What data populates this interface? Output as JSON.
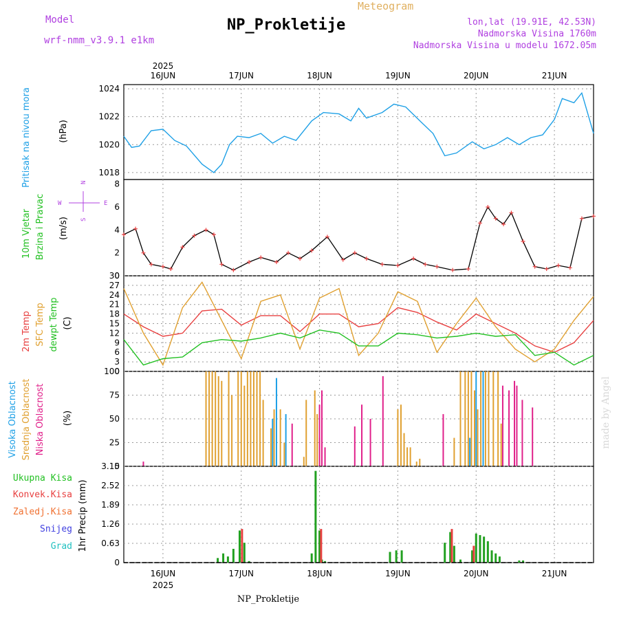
{
  "header": {
    "model_label": "Model",
    "model_name": "wrf-nmm_v3.9.1 e1km",
    "title": "NP_Prokletije",
    "subtitle": "Meteogram",
    "lonlat": "lon,lat (19.91E, 42.53N)",
    "altitude": "Nadmorska Visina 1760m",
    "model_altitude": "Nadmorska Visina u modelu 1672.05m",
    "bottom_label": "NP_Prokletije",
    "watermark": "made by Angel"
  },
  "colors": {
    "pressure": "#1ea0e6",
    "wind_label": "#22c022",
    "wind_dir": "#b040e0",
    "t2m": "#e84040",
    "sfc": "#e0a030",
    "dewpt": "#22c022",
    "cloud_high": "#1ea0e6",
    "cloud_mid": "#e0a030",
    "cloud_low": "#e0208a",
    "precip_total": "#22a020",
    "precip_conv": "#e84040",
    "precip_grid": "#f07030",
    "snow": "#4040e0",
    "hail": "#20c0c0",
    "title": "#000000",
    "model": "#b040e0",
    "meteogram": "#e0b060"
  },
  "time_axis": {
    "year": "2025",
    "days": [
      "16JUN",
      "17JUN",
      "18JUN",
      "19JUN",
      "20JUN",
      "21JUN"
    ],
    "day_positions": [
      0.5,
      1.5,
      2.5,
      3.5,
      4.5,
      5.5
    ],
    "range": [
      0,
      6
    ]
  },
  "chart_data": [
    {
      "type": "line",
      "panel": "pressure",
      "ylabel": "(hPa)",
      "side_label": "Pritisak na nivou mora",
      "ylim": [
        1017.5,
        1024.3
      ],
      "yticks": [
        "1024",
        "1022",
        "1020",
        "1018"
      ],
      "ytick_values": [
        1024,
        1022,
        1020,
        1018
      ],
      "series": [
        {
          "x": [
            0,
            0.1,
            0.2,
            0.35,
            0.5,
            0.65,
            0.8,
            1.0,
            1.15,
            1.25,
            1.35,
            1.45,
            1.6,
            1.75,
            1.9,
            2.05,
            2.2,
            2.4,
            2.55,
            2.75,
            2.9,
            3.0,
            3.1,
            3.3,
            3.45,
            3.6,
            3.8,
            3.95,
            4.1,
            4.25,
            4.45,
            4.6,
            4.75,
            4.9,
            5.05,
            5.2,
            5.35,
            5.5,
            5.6,
            5.75,
            5.85,
            6.0
          ],
          "values": [
            1020.6,
            1019.8,
            1019.9,
            1021.0,
            1021.1,
            1020.3,
            1019.9,
            1018.6,
            1018.0,
            1018.6,
            1020.0,
            1020.6,
            1020.5,
            1020.8,
            1020.1,
            1020.6,
            1020.3,
            1021.7,
            1022.3,
            1022.2,
            1021.7,
            1022.6,
            1021.9,
            1022.3,
            1022.9,
            1022.7,
            1021.6,
            1020.8,
            1019.2,
            1019.4,
            1020.2,
            1019.7,
            1020.0,
            1020.5,
            1020.0,
            1020.5,
            1020.7,
            1021.8,
            1023.3,
            1023.0,
            1023.7,
            1020.8
          ]
        }
      ]
    },
    {
      "type": "line",
      "panel": "wind",
      "ylabel": "(m/s)",
      "side_label_1": "10m Vjetar",
      "side_label_2": "Brzina i Pravac",
      "compass": [
        "N",
        "W",
        "E",
        "S"
      ],
      "ylim": [
        0,
        8.4
      ],
      "yticks": [
        "8",
        "6",
        "4",
        "2",
        "0"
      ],
      "ytick_values": [
        8,
        6,
        4,
        2,
        0
      ],
      "series": [
        {
          "name": "speed",
          "x": [
            0,
            0.15,
            0.25,
            0.35,
            0.5,
            0.6,
            0.75,
            0.9,
            1.05,
            1.15,
            1.25,
            1.4,
            1.6,
            1.75,
            1.95,
            2.1,
            2.25,
            2.4,
            2.6,
            2.8,
            2.95,
            3.1,
            3.3,
            3.5,
            3.7,
            3.85,
            4.0,
            4.2,
            4.4,
            4.55,
            4.65,
            4.75,
            4.85,
            4.95,
            5.1,
            5.25,
            5.4,
            5.55,
            5.7,
            5.85,
            6.0
          ],
          "values": [
            3.6,
            4.1,
            2.0,
            1.0,
            0.8,
            0.6,
            2.5,
            3.5,
            4.0,
            3.6,
            1.0,
            0.5,
            1.2,
            1.6,
            1.2,
            2.0,
            1.5,
            2.2,
            3.4,
            1.4,
            2.0,
            1.5,
            1.0,
            0.9,
            1.5,
            1.0,
            0.8,
            0.5,
            0.6,
            4.6,
            6.0,
            5.0,
            4.5,
            5.5,
            3.0,
            0.8,
            0.6,
            0.9,
            0.7,
            5.0,
            5.2
          ]
        }
      ]
    },
    {
      "type": "line",
      "panel": "temperature",
      "ylabel": "(C)",
      "side_labels": [
        "2m Temp",
        "SFC Temp",
        "dewpt Temp"
      ],
      "ylim": [
        0,
        30
      ],
      "yticks": [
        "30",
        "27",
        "24",
        "21",
        "18",
        "15",
        "12",
        "9",
        "6",
        "3",
        "0"
      ],
      "ytick_values": [
        30,
        27,
        24,
        21,
        18,
        15,
        12,
        9,
        6,
        3,
        0
      ],
      "x": [
        0,
        0.25,
        0.5,
        0.75,
        1.0,
        1.25,
        1.5,
        1.75,
        2.0,
        2.25,
        2.5,
        2.75,
        3.0,
        3.25,
        3.5,
        3.75,
        4.0,
        4.25,
        4.5,
        4.75,
        5.0,
        5.25,
        5.5,
        5.75,
        6.0
      ],
      "series": [
        {
          "name": "2m Temp",
          "values": [
            18.0,
            14.0,
            11.0,
            12.0,
            19.0,
            19.5,
            14.5,
            17.5,
            17.5,
            12.5,
            18.0,
            18.0,
            14.0,
            15.0,
            20.0,
            18.5,
            15.5,
            13.0,
            18.0,
            15.0,
            12.0,
            8.0,
            6.0,
            9.0,
            16.0
          ]
        },
        {
          "name": "SFC Temp",
          "values": [
            26.0,
            12.0,
            2.0,
            20.0,
            28.0,
            16.0,
            4.0,
            22.0,
            24.0,
            7.0,
            23.0,
            26.0,
            5.0,
            12.0,
            25.0,
            22.0,
            6.0,
            15.0,
            23.0,
            14.0,
            7.0,
            3.0,
            7.0,
            16.0,
            23.5
          ]
        },
        {
          "name": "dewpt Temp",
          "values": [
            10.0,
            2.0,
            4.0,
            4.5,
            9.0,
            10.0,
            9.5,
            10.5,
            12.0,
            10.5,
            13.0,
            12.0,
            8.0,
            8.0,
            12.0,
            11.5,
            10.5,
            11.0,
            12.0,
            11.0,
            11.5,
            5.0,
            6.0,
            2.0,
            5.0
          ]
        }
      ]
    },
    {
      "type": "bar",
      "panel": "clouds",
      "ylabel": "(%)",
      "side_labels": [
        "Visoka Oblacnost",
        "Srednja Oblacnost",
        "Niska Oblacnost"
      ],
      "ylim": [
        0,
        100
      ],
      "yticks": [
        "100",
        "75",
        "50",
        "25",
        "0"
      ],
      "ytick_values": [
        100,
        75,
        50,
        25,
        0
      ],
      "series": [
        {
          "name": "Srednja Oblacnost",
          "x": [
            1.05,
            1.09,
            1.13,
            1.17,
            1.21,
            1.25,
            1.34,
            1.38,
            1.46,
            1.5,
            1.54,
            1.58,
            1.62,
            1.66,
            1.7,
            1.74,
            1.78,
            1.88,
            1.92,
            2.0,
            2.05,
            2.3,
            2.33,
            2.44,
            2.47,
            2.5,
            3.5,
            3.54,
            3.58,
            3.62,
            3.66,
            3.74,
            3.78,
            4.22,
            4.3,
            4.36,
            4.4,
            4.44,
            4.48,
            4.52,
            4.56,
            4.62,
            4.66,
            4.72,
            4.78,
            4.82
          ],
          "values": [
            100,
            100,
            100,
            100,
            95,
            90,
            100,
            75,
            100,
            100,
            85,
            100,
            100,
            100,
            100,
            100,
            70,
            40,
            60,
            60,
            25,
            10,
            70,
            80,
            55,
            30,
            60,
            65,
            35,
            20,
            20,
            5,
            8,
            30,
            100,
            100,
            100,
            100,
            80,
            60,
            100,
            100,
            100,
            100,
            100,
            45
          ]
        },
        {
          "name": "Visoka Oblacnost",
          "x": [
            1.9,
            1.95,
            2.07,
            4.42,
            4.5,
            4.59
          ],
          "values": [
            50,
            93,
            55,
            30,
            100,
            100
          ]
        },
        {
          "name": "Niska Oblacnost",
          "x": [
            0.25,
            2.15,
            2.5,
            2.53,
            2.57,
            2.95,
            3.04,
            3.15,
            3.31,
            4.08,
            4.84,
            4.92,
            4.99,
            5.02,
            5.09,
            5.22
          ],
          "values": [
            5,
            45,
            65,
            80,
            20,
            42,
            65,
            50,
            95,
            55,
            85,
            80,
            90,
            85,
            70,
            62
          ]
        }
      ]
    },
    {
      "type": "bar",
      "panel": "precip",
      "ylabel": "1hr Precip (mm)",
      "side_labels": [
        "Ukupna Kisa",
        "Konvek.Kisa",
        "Zaledj.Kisa",
        "Snijeg",
        "Grad"
      ],
      "ylim": [
        0,
        3.15
      ],
      "yticks": [
        "3.15",
        "2.52",
        "1.89",
        "1.26",
        "0.63",
        "0"
      ],
      "ytick_values": [
        3.15,
        2.52,
        1.89,
        1.26,
        0.63,
        0
      ],
      "series": [
        {
          "name": "Ukupna Kisa",
          "x": [
            1.2,
            1.27,
            1.33,
            1.4,
            1.48,
            1.54,
            1.6,
            2.4,
            2.45,
            2.5,
            2.53,
            2.57,
            3.4,
            3.48,
            3.55,
            4.1,
            4.17,
            4.22,
            4.3,
            4.45,
            4.5,
            4.55,
            4.6,
            4.65,
            4.7,
            4.75,
            4.8,
            5.05,
            5.1
          ],
          "values": [
            0.15,
            0.3,
            0.2,
            0.45,
            1.05,
            0.65,
            0.05,
            0.3,
            3.0,
            1.05,
            0.1,
            0.05,
            0.35,
            0.4,
            0.4,
            0.65,
            1.0,
            0.55,
            0.1,
            0.4,
            0.95,
            0.9,
            0.85,
            0.7,
            0.4,
            0.3,
            0.2,
            0.07,
            0.07
          ]
        },
        {
          "name": "Konvek.Kisa",
          "x": [
            1.51,
            2.52,
            4.19,
            4.47
          ],
          "values": [
            1.1,
            1.1,
            1.1,
            0.55
          ]
        }
      ]
    }
  ]
}
